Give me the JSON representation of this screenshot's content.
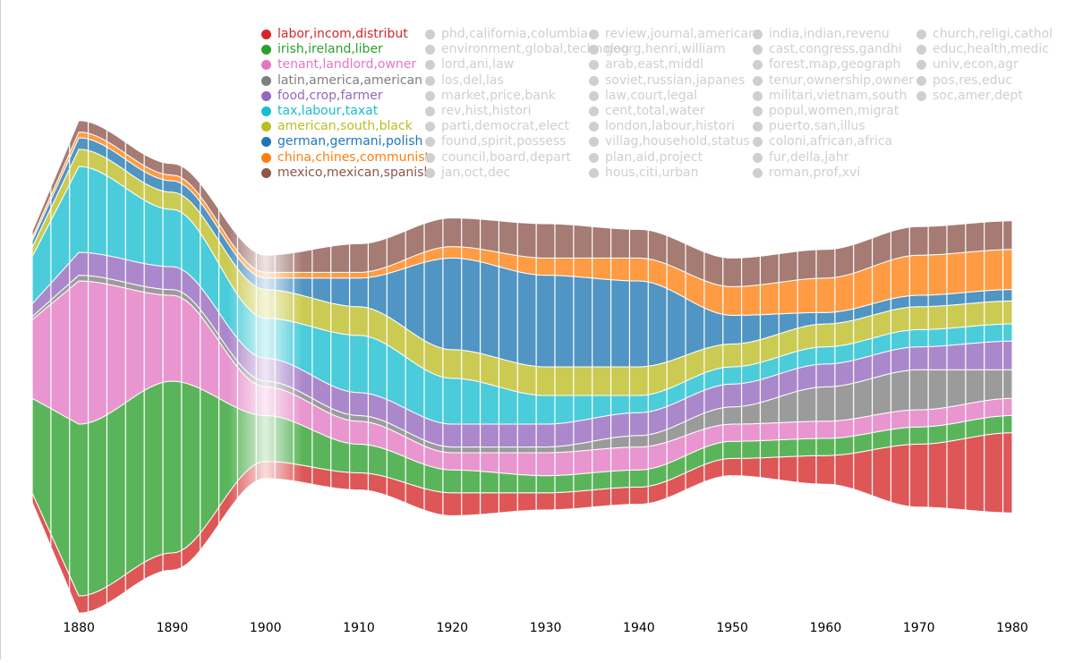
{
  "chart_data": {
    "type": "area",
    "x": [
      1880,
      1890,
      1900,
      1910,
      1920,
      1930,
      1940,
      1950,
      1960,
      1970,
      1980
    ],
    "xlim": [
      1875,
      1980
    ],
    "x_ticks": [
      "1880",
      "1890",
      "1900",
      "1910",
      "1920",
      "1930",
      "1940",
      "1950",
      "1960",
      "1970",
      "1980"
    ],
    "xlabel": "",
    "ylabel": "",
    "grid": false,
    "legend_position": "top",
    "series": [
      {
        "name": "labor,incom,distribut",
        "color": "#d62728",
        "highlighted": true,
        "values": [
          0.03,
          0.03,
          0.03,
          0.03,
          0.04,
          0.03,
          0.03,
          0.03,
          0.05,
          0.11,
          0.14
        ]
      },
      {
        "name": "irish,ireland,liber",
        "color": "#2ca02c",
        "highlighted": true,
        "values": [
          0.3,
          0.3,
          0.08,
          0.05,
          0.04,
          0.03,
          0.03,
          0.03,
          0.03,
          0.03,
          0.03
        ]
      },
      {
        "name": "tenant,landlord,owner",
        "color": "#e377c2",
        "highlighted": true,
        "values": [
          0.25,
          0.15,
          0.05,
          0.04,
          0.03,
          0.04,
          0.04,
          0.03,
          0.03,
          0.03,
          0.03
        ]
      },
      {
        "name": "latin,america,american",
        "color": "#7f7f7f",
        "highlighted": true,
        "values": [
          0.01,
          0.01,
          0.01,
          0.01,
          0.01,
          0.01,
          0.02,
          0.03,
          0.06,
          0.07,
          0.05
        ]
      },
      {
        "name": "food,crop,farmer",
        "color": "#9467bd",
        "highlighted": true,
        "values": [
          0.04,
          0.04,
          0.04,
          0.04,
          0.04,
          0.04,
          0.04,
          0.04,
          0.04,
          0.04,
          0.05
        ]
      },
      {
        "name": "tax,labour,taxat",
        "color": "#17becf",
        "highlighted": true,
        "values": [
          0.15,
          0.1,
          0.07,
          0.1,
          0.08,
          0.05,
          0.03,
          0.03,
          0.03,
          0.03,
          0.03
        ]
      },
      {
        "name": "american,south,black",
        "color": "#bcbd22",
        "highlighted": true,
        "values": [
          0.03,
          0.03,
          0.05,
          0.05,
          0.05,
          0.05,
          0.05,
          0.04,
          0.04,
          0.04,
          0.04
        ]
      },
      {
        "name": "german,germani,polish",
        "color": "#1f77b4",
        "highlighted": true,
        "values": [
          0.02,
          0.02,
          0.02,
          0.05,
          0.16,
          0.16,
          0.15,
          0.05,
          0.02,
          0.02,
          0.02
        ]
      },
      {
        "name": "china,chines,communist",
        "color": "#ff7f0e",
        "highlighted": true,
        "values": [
          0.01,
          0.01,
          0.01,
          0.01,
          0.02,
          0.03,
          0.04,
          0.05,
          0.06,
          0.07,
          0.07
        ]
      },
      {
        "name": "mexico,mexican,spanish",
        "color": "#8c564b",
        "highlighted": true,
        "values": [
          0.02,
          0.02,
          0.03,
          0.05,
          0.05,
          0.06,
          0.05,
          0.05,
          0.05,
          0.05,
          0.05
        ]
      }
    ],
    "other_topics": [
      "phd,california,columbia",
      "environment,global,technolog",
      "lord,ani,law",
      "los,del,las",
      "market,price,bank",
      "rev,hist,histori",
      "parti,democrat,elect",
      "found,spirit,possess",
      "council,board,depart",
      "jan,oct,dec",
      "review,journal,american",
      "georg,henri,william",
      "arab,east,middl",
      "soviet,russian,japanes",
      "law,court,legal",
      "cent,total,water",
      "london,labour,histori",
      "villag,household,status",
      "plan,aid,project",
      "hous,citi,urban",
      "india,indian,revenu",
      "cast,congress,gandhi",
      "forest,map,geograph",
      "tenur,ownership,owner",
      "militari,vietnam,south",
      "popul,women,migrat",
      "puerto,san,illus",
      "coloni,african,africa",
      "fur,della,jahr",
      "roman,prof,xvi",
      "church,religi,cathol",
      "educ,health,medic",
      "univ,econ,agr",
      "pos,res,educ",
      "soc,amer,dept"
    ],
    "other_topics_color": "#cfcfcf"
  }
}
